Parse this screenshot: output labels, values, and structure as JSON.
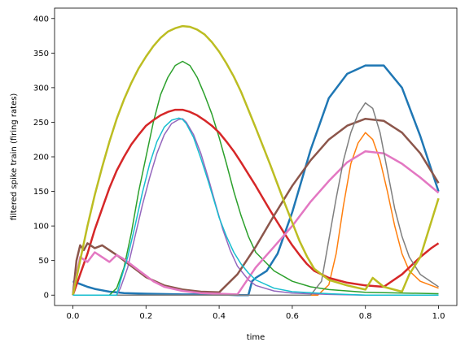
{
  "chart_data": {
    "type": "line",
    "xlabel": "time",
    "ylabel": "filtered spike train (firing rates)",
    "xlim": [
      -0.05,
      1.05
    ],
    "ylim": [
      -15,
      415
    ],
    "xticks": [
      0.0,
      0.2,
      0.4,
      0.6,
      0.8,
      1.0
    ],
    "xtick_labels": [
      "0.0",
      "0.2",
      "0.4",
      "0.6",
      "0.8",
      "1.0"
    ],
    "yticks": [
      0,
      50,
      100,
      150,
      200,
      250,
      300,
      350,
      400
    ],
    "ytick_labels": [
      "0",
      "50",
      "100",
      "150",
      "200",
      "250",
      "300",
      "350",
      "400"
    ],
    "grid": false,
    "series": [
      {
        "color": "#1f77b4",
        "x": [
          0,
          0.02,
          0.04,
          0.06,
          0.08,
          0.1,
          0.12,
          0.14,
          0.2,
          0.3,
          0.4,
          0.45,
          0.48,
          0.49,
          0.5,
          0.53,
          0.56,
          0.6,
          0.65,
          0.7,
          0.75,
          0.8,
          0.85,
          0.9,
          0.95,
          1.0
        ],
        "y": [
          20,
          16,
          12,
          9,
          7,
          5,
          4,
          3,
          2,
          1,
          1,
          0,
          0,
          20,
          25,
          35,
          60,
          120,
          210,
          285,
          320,
          332,
          332,
          300,
          230,
          150
        ]
      },
      {
        "color": "#ff7f0e",
        "x": [
          0,
          0.67,
          0.7,
          0.72,
          0.74,
          0.76,
          0.78,
          0.8,
          0.82,
          0.84,
          0.86,
          0.88,
          0.9,
          0.92,
          0.95,
          1.0
        ],
        "y": [
          0,
          0,
          15,
          60,
          130,
          190,
          220,
          235,
          225,
          195,
          150,
          100,
          60,
          35,
          20,
          10
        ]
      },
      {
        "color": "#2ca02c",
        "x": [
          0,
          0.1,
          0.12,
          0.14,
          0.16,
          0.18,
          0.2,
          0.22,
          0.24,
          0.26,
          0.28,
          0.3,
          0.32,
          0.34,
          0.36,
          0.38,
          0.4,
          0.42,
          0.44,
          0.46,
          0.48,
          0.5,
          0.55,
          0.6,
          0.65,
          0.7,
          0.8,
          1.0
        ],
        "y": [
          0,
          0,
          10,
          40,
          90,
          150,
          200,
          250,
          290,
          315,
          332,
          338,
          332,
          315,
          290,
          262,
          228,
          190,
          150,
          115,
          85,
          62,
          35,
          20,
          12,
          8,
          4,
          2
        ]
      },
      {
        "color": "#d62728",
        "x": [
          0,
          0.02,
          0.04,
          0.06,
          0.08,
          0.1,
          0.12,
          0.14,
          0.16,
          0.18,
          0.2,
          0.22,
          0.24,
          0.26,
          0.28,
          0.3,
          0.32,
          0.34,
          0.36,
          0.38,
          0.4,
          0.42,
          0.44,
          0.46,
          0.48,
          0.5,
          0.52,
          0.54,
          0.56,
          0.58,
          0.6,
          0.62,
          0.64,
          0.66,
          0.7,
          0.75,
          0.8,
          0.85,
          0.9,
          0.95,
          0.98,
          1.0
        ],
        "y": [
          0,
          30,
          60,
          95,
          125,
          155,
          180,
          200,
          218,
          232,
          245,
          253,
          260,
          265,
          268,
          268,
          265,
          260,
          253,
          245,
          235,
          222,
          208,
          192,
          175,
          158,
          140,
          122,
          105,
          88,
          72,
          58,
          45,
          35,
          25,
          18,
          14,
          12,
          30,
          55,
          68,
          75
        ]
      },
      {
        "color": "#9467bd",
        "x": [
          0,
          0.12,
          0.13,
          0.15,
          0.17,
          0.19,
          0.21,
          0.23,
          0.25,
          0.27,
          0.29,
          0.3,
          0.31,
          0.33,
          0.35,
          0.37,
          0.39,
          0.41,
          0.43,
          0.45,
          0.48,
          0.5,
          0.55,
          0.6,
          0.7,
          0.8,
          0.9,
          1.0
        ],
        "y": [
          0,
          0,
          10,
          40,
          85,
          130,
          170,
          205,
          232,
          248,
          254,
          255,
          250,
          232,
          205,
          170,
          132,
          95,
          65,
          42,
          22,
          14,
          6,
          3,
          1,
          0,
          0,
          0
        ]
      },
      {
        "color": "#8c564b",
        "x": [
          0,
          0.01,
          0.02,
          0.03,
          0.04,
          0.06,
          0.08,
          0.1,
          0.12,
          0.14,
          0.16,
          0.18,
          0.2,
          0.25,
          0.3,
          0.35,
          0.4,
          0.45,
          0.5,
          0.55,
          0.6,
          0.65,
          0.7,
          0.75,
          0.8,
          0.85,
          0.9,
          0.95,
          1.0
        ],
        "y": [
          0,
          50,
          72,
          65,
          75,
          68,
          72,
          65,
          58,
          50,
          42,
          34,
          26,
          14,
          8,
          5,
          4,
          30,
          70,
          115,
          158,
          195,
          225,
          245,
          255,
          252,
          235,
          205,
          162
        ]
      },
      {
        "color": "#e377c2",
        "x": [
          0,
          0.02,
          0.04,
          0.06,
          0.08,
          0.1,
          0.12,
          0.14,
          0.16,
          0.18,
          0.2,
          0.22,
          0.25,
          0.3,
          0.35,
          0.4,
          0.45,
          0.5,
          0.55,
          0.6,
          0.65,
          0.7,
          0.75,
          0.8,
          0.85,
          0.9,
          0.95,
          1.0
        ],
        "y": [
          0,
          55,
          48,
          62,
          55,
          48,
          58,
          52,
          44,
          36,
          28,
          20,
          12,
          6,
          3,
          2,
          1,
          40,
          70,
          100,
          135,
          165,
          192,
          208,
          205,
          190,
          170,
          148
        ]
      },
      {
        "color": "#7f7f7f",
        "x": [
          0,
          0.4,
          0.45,
          0.5,
          0.55,
          0.6,
          0.65,
          0.68,
          0.7,
          0.72,
          0.74,
          0.76,
          0.78,
          0.8,
          0.82,
          0.84,
          0.86,
          0.88,
          0.9,
          0.92,
          0.95,
          1.0
        ],
        "y": [
          0,
          0,
          0,
          0,
          0,
          0,
          0,
          20,
          80,
          140,
          195,
          235,
          262,
          278,
          270,
          235,
          180,
          125,
          85,
          55,
          30,
          12
        ]
      },
      {
        "color": "#bcbd22",
        "x": [
          0,
          0.02,
          0.04,
          0.06,
          0.08,
          0.1,
          0.12,
          0.14,
          0.16,
          0.18,
          0.2,
          0.22,
          0.24,
          0.26,
          0.28,
          0.3,
          0.32,
          0.34,
          0.36,
          0.38,
          0.4,
          0.42,
          0.44,
          0.46,
          0.48,
          0.5,
          0.52,
          0.54,
          0.56,
          0.58,
          0.6,
          0.62,
          0.64,
          0.66,
          0.7,
          0.75,
          0.8,
          0.82,
          0.85,
          0.9,
          0.92,
          0.95,
          1.0
        ],
        "y": [
          0,
          50,
          100,
          145,
          185,
          222,
          255,
          283,
          307,
          328,
          345,
          360,
          372,
          381,
          386,
          389,
          388,
          384,
          377,
          366,
          352,
          335,
          316,
          294,
          268,
          242,
          215,
          188,
          160,
          132,
          105,
          78,
          56,
          38,
          22,
          14,
          8,
          25,
          12,
          5,
          30,
          55,
          140
        ]
      },
      {
        "color": "#17becf",
        "x": [
          0,
          0.12,
          0.13,
          0.15,
          0.17,
          0.19,
          0.21,
          0.23,
          0.25,
          0.27,
          0.29,
          0.3,
          0.31,
          0.33,
          0.35,
          0.37,
          0.39,
          0.4,
          0.42,
          0.44,
          0.46,
          0.48,
          0.5,
          0.55,
          0.6,
          0.7,
          0.8,
          0.9,
          1.0
        ],
        "y": [
          0,
          0,
          20,
          55,
          100,
          148,
          190,
          222,
          243,
          253,
          256,
          254,
          248,
          228,
          198,
          165,
          130,
          112,
          85,
          62,
          45,
          32,
          22,
          10,
          5,
          2,
          0,
          0,
          0
        ]
      }
    ]
  }
}
